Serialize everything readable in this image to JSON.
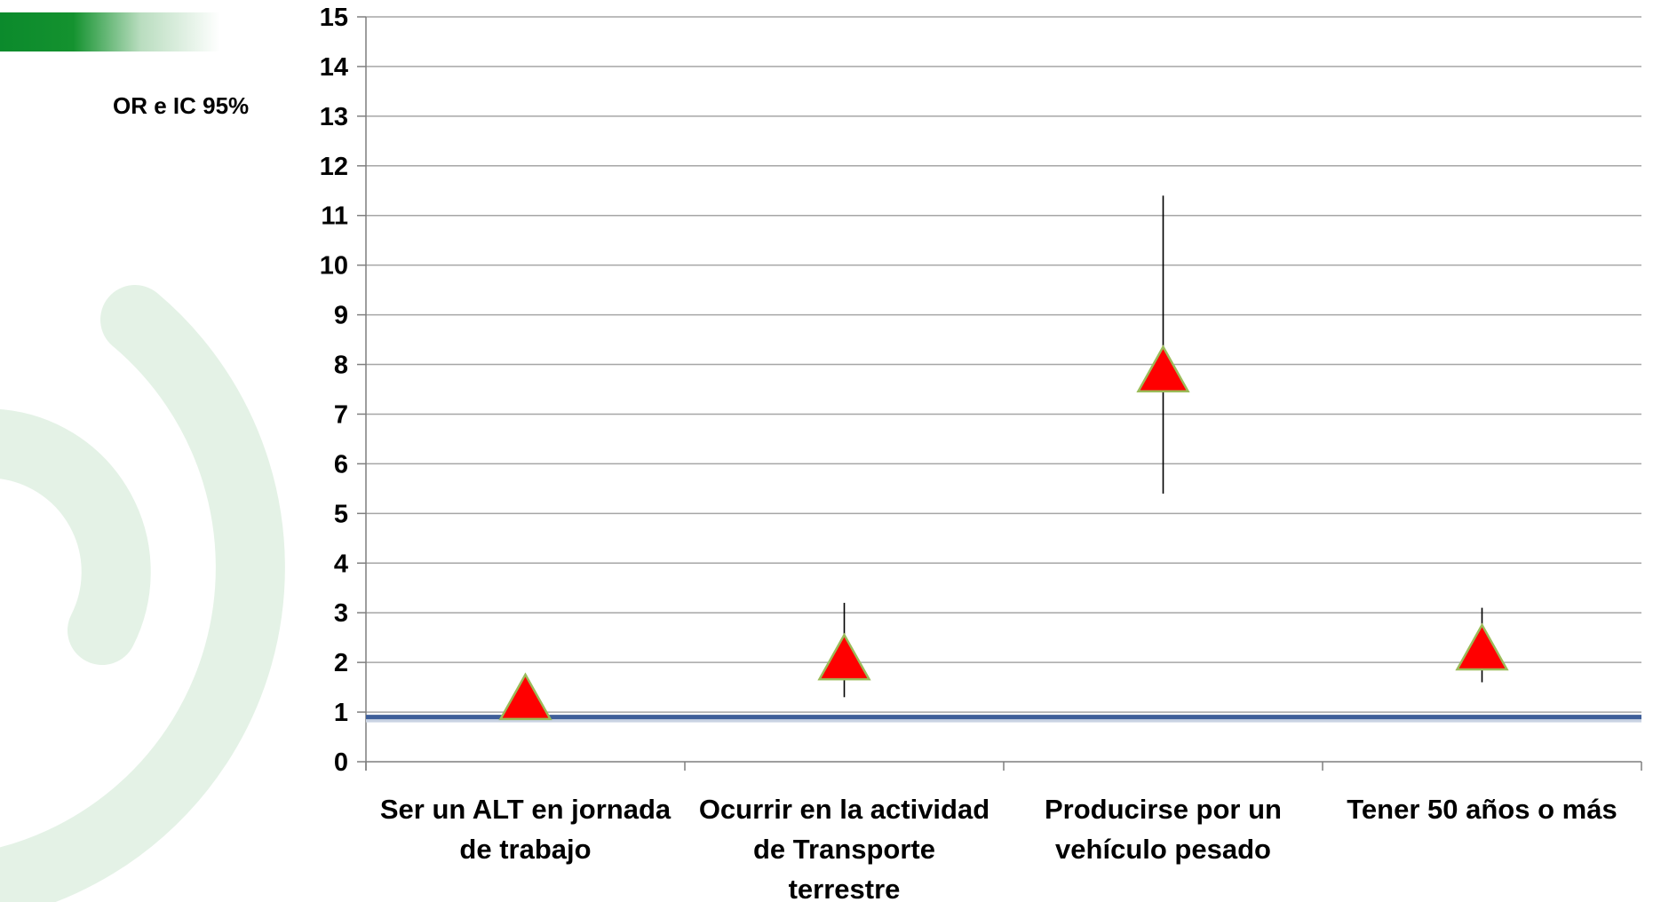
{
  "header": {
    "bar_colors": [
      "#0b8a2c",
      "#ffffff"
    ]
  },
  "chart_data": {
    "type": "scatter",
    "ylabel": "OR e IC 95%",
    "ylim": [
      0,
      15
    ],
    "yticks": [
      0,
      1,
      2,
      3,
      4,
      5,
      6,
      7,
      8,
      9,
      10,
      11,
      12,
      13,
      14,
      15
    ],
    "grid": true,
    "reference_line": 0.9,
    "categories": [
      [
        "Ser un ALT en jornada",
        "de trabajo"
      ],
      [
        "Ocurrir en la actividad",
        "de Transporte",
        "terrestre"
      ],
      [
        "Producirse por un",
        "vehículo pesado"
      ],
      [
        "Tener 50 años o más"
      ]
    ],
    "series": [
      {
        "marker": "triangle",
        "color": "#ff0000",
        "edge_color": "#9bbb59",
        "values": [
          1.2,
          2.0,
          7.8,
          2.2
        ],
        "ci_low": [
          0.9,
          1.3,
          5.4,
          1.6
        ],
        "ci_high": [
          1.7,
          3.2,
          11.4,
          3.1
        ]
      }
    ],
    "colors": {
      "grid": "#a6a6a6",
      "reference_line": "#3f5f9a",
      "error_bar": "#000000"
    }
  }
}
